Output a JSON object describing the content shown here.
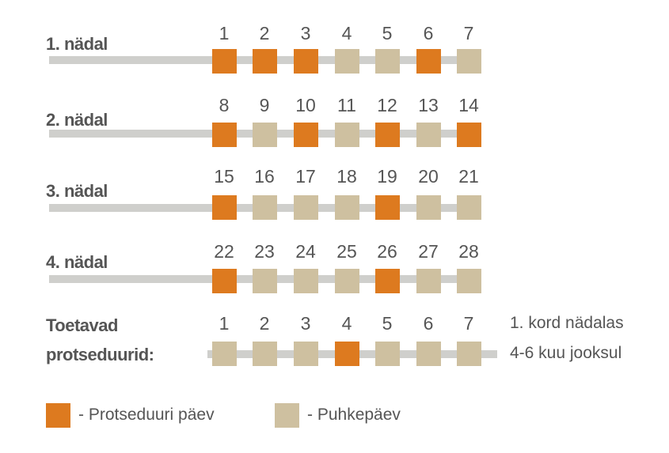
{
  "weeks": [
    {
      "label": "1. nädal",
      "days": [
        "1",
        "2",
        "3",
        "4",
        "5",
        "6",
        "7"
      ],
      "pattern": [
        "P",
        "P",
        "P",
        "R",
        "R",
        "P",
        "R"
      ]
    },
    {
      "label": "2. nädal",
      "days": [
        "8",
        "9",
        "10",
        "11",
        "12",
        "13",
        "14"
      ],
      "pattern": [
        "P",
        "R",
        "P",
        "R",
        "P",
        "R",
        "P"
      ]
    },
    {
      "label": "3. nädal",
      "days": [
        "15",
        "16",
        "17",
        "18",
        "19",
        "20",
        "21"
      ],
      "pattern": [
        "P",
        "R",
        "R",
        "R",
        "P",
        "R",
        "R"
      ]
    },
    {
      "label": "4. nädal",
      "days": [
        "22",
        "23",
        "24",
        "25",
        "26",
        "27",
        "28"
      ],
      "pattern": [
        "P",
        "R",
        "R",
        "R",
        "P",
        "R",
        "R"
      ]
    }
  ],
  "supporting": {
    "label_line1": "Toetavad",
    "label_line2": "protseduurid:",
    "days": [
      "1",
      "2",
      "3",
      "4",
      "5",
      "6",
      "7"
    ],
    "pattern": [
      "R",
      "R",
      "R",
      "P",
      "R",
      "R",
      "R"
    ],
    "note_line1": "1. kord nädalas",
    "note_line2": "4-6 kuu jooksul"
  },
  "legend": {
    "procedure_label": "- Protseduuri päev",
    "rest_label": "- Puhkepäev"
  },
  "colors": {
    "procedure": "#dd7a1f",
    "rest": "#cec0a0",
    "bar": "#cfcfcc",
    "text": "#555555"
  }
}
